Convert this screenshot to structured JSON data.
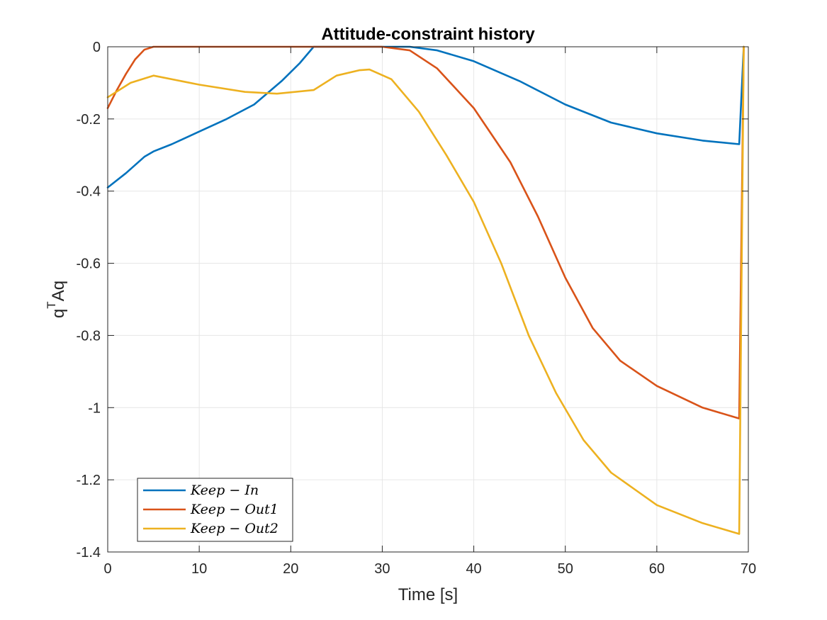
{
  "chart_data": {
    "type": "line",
    "title": "Attitude-constraint history",
    "xlabel": "Time [s]",
    "ylabel": "q",
    "ylabel_sup": "T",
    "ylabel_rest": "Aq",
    "xlim": [
      0,
      70
    ],
    "ylim": [
      -1.4,
      0
    ],
    "xticks": [
      0,
      10,
      20,
      30,
      40,
      50,
      60,
      70
    ],
    "xtick_labels": [
      "0",
      "10",
      "20",
      "30",
      "40",
      "50",
      "60",
      "70"
    ],
    "yticks": [
      0,
      -0.2,
      -0.4,
      -0.6,
      -0.8,
      -1,
      -1.2,
      -1.4
    ],
    "ytick_labels": [
      "0",
      "-0.2",
      "-0.4",
      "-0.6",
      "-0.8",
      "-1",
      "-1.2",
      "-1.4"
    ],
    "grid": true,
    "legend_position": "bottom-left",
    "series": [
      {
        "name": "Keep − In",
        "color": "#0072BD",
        "x": [
          0,
          2,
          4,
          5,
          7,
          10,
          13,
          16,
          19,
          21,
          22.5,
          25,
          30,
          33,
          36,
          40,
          45,
          50,
          55,
          60,
          65,
          69,
          69.5
        ],
        "y": [
          -0.39,
          -0.35,
          -0.305,
          -0.29,
          -0.27,
          -0.235,
          -0.2,
          -0.16,
          -0.095,
          -0.045,
          0,
          0,
          0,
          0,
          -0.01,
          -0.04,
          -0.095,
          -0.16,
          -0.21,
          -0.24,
          -0.26,
          -0.27,
          0
        ]
      },
      {
        "name": "Keep − Out1",
        "color": "#D95319",
        "x": [
          0,
          1,
          2,
          3,
          4,
          5,
          10,
          20,
          30,
          33,
          36,
          40,
          44,
          47,
          50,
          53,
          56,
          60,
          65,
          69,
          69.5
        ],
        "y": [
          -0.17,
          -0.12,
          -0.075,
          -0.035,
          -0.008,
          0,
          0,
          0,
          0,
          -0.01,
          -0.06,
          -0.17,
          -0.32,
          -0.47,
          -0.64,
          -0.78,
          -0.87,
          -0.94,
          -1.0,
          -1.03,
          0
        ]
      },
      {
        "name": "Keep − Out2",
        "color": "#EDB120",
        "x": [
          0,
          2.5,
          5,
          10,
          15,
          18.5,
          22.5,
          25,
          27.5,
          28.6,
          31,
          34,
          37,
          40,
          43,
          46,
          49,
          52,
          55,
          60,
          65,
          69,
          69.5
        ],
        "y": [
          -0.14,
          -0.1,
          -0.08,
          -0.105,
          -0.125,
          -0.13,
          -0.12,
          -0.08,
          -0.065,
          -0.063,
          -0.09,
          -0.18,
          -0.3,
          -0.43,
          -0.6,
          -0.8,
          -0.96,
          -1.09,
          -1.18,
          -1.27,
          -1.32,
          -1.35,
          0
        ]
      }
    ]
  }
}
